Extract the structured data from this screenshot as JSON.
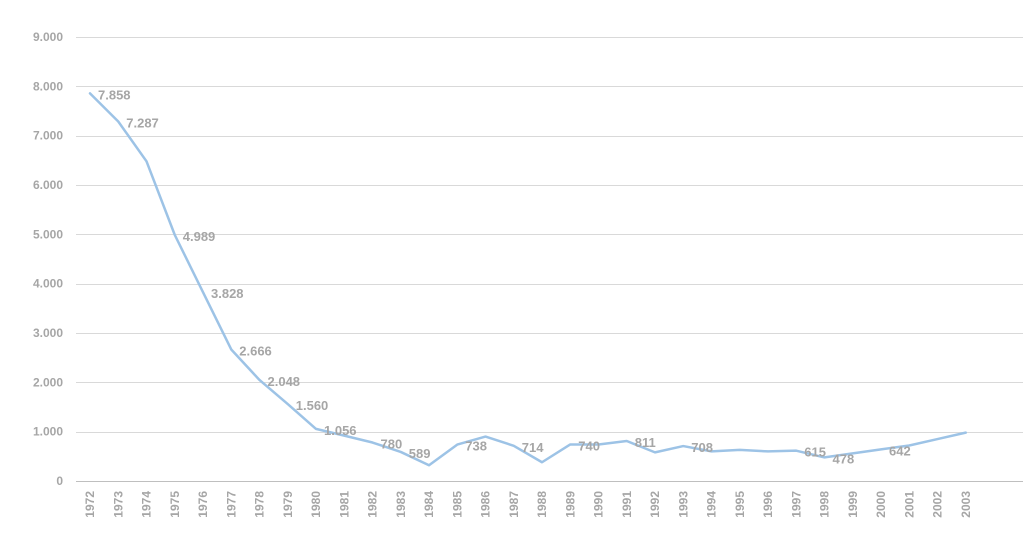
{
  "chart_data": {
    "type": "line",
    "title": "",
    "xlabel": "",
    "ylabel": "",
    "categories": [
      "1972",
      "1973",
      "1974",
      "1975",
      "1976",
      "1977",
      "1978",
      "1979",
      "1980",
      "1981",
      "1982",
      "1983",
      "1984",
      "1985",
      "1986",
      "1987",
      "1988",
      "1989",
      "1990",
      "1991",
      "1992",
      "1993",
      "1994",
      "1995",
      "1996",
      "1997",
      "1998",
      "1999",
      "2000",
      "2001",
      "2002",
      "2003"
    ],
    "values": [
      7858,
      7287,
      6480,
      4989,
      3828,
      2666,
      2048,
      1560,
      1056,
      920,
      780,
      589,
      320,
      738,
      900,
      714,
      380,
      740,
      740,
      811,
      580,
      708,
      600,
      630,
      600,
      615,
      478,
      560,
      642,
      720,
      850,
      980
    ],
    "value_labels": [
      "7.858",
      "7.287",
      "",
      "4.989",
      "3.828",
      "2.666",
      "2.048",
      "1.560",
      "1.056",
      "",
      "780",
      "589",
      "",
      "738",
      "",
      "714",
      "",
      "740",
      "",
      "811",
      "",
      "708",
      "",
      "",
      "",
      "615",
      "478",
      "",
      "642",
      "",
      "",
      ""
    ],
    "ylim": [
      0,
      9000
    ],
    "yticks": [
      0,
      1000,
      2000,
      3000,
      4000,
      5000,
      6000,
      7000,
      8000,
      9000
    ],
    "ytick_labels": [
      "0",
      "1.000",
      "2.000",
      "3.000",
      "4.000",
      "5.000",
      "6.000",
      "7.000",
      "8.000",
      "9.000"
    ],
    "grid": true,
    "legend": "none",
    "line_color": "#9dc3e6"
  }
}
